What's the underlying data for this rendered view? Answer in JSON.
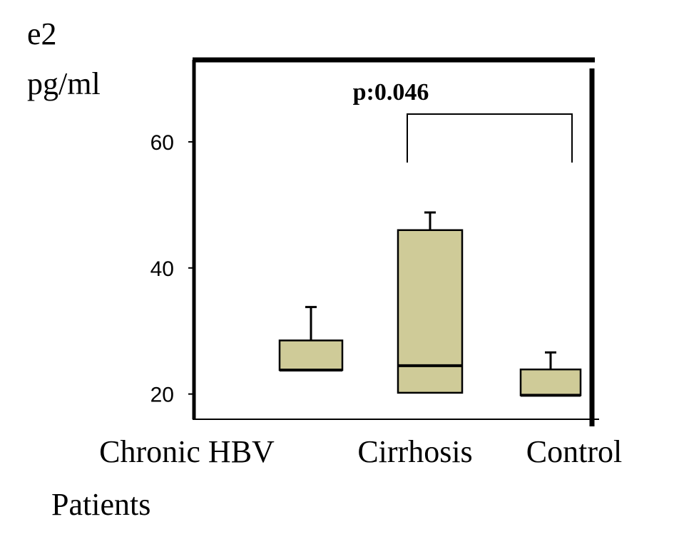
{
  "chart_data": {
    "type": "box",
    "ylabel": [
      "e2",
      "pg/ml"
    ],
    "xlabel": "Patients",
    "y_ticks": [
      20,
      40,
      60
    ],
    "ylim": [
      16,
      73
    ],
    "grid": false,
    "legend": "none",
    "box_color": "#cfcb98",
    "groups": [
      {
        "label": "Chronic HBV",
        "q1": 23.8,
        "median": 23.8,
        "q3": 28.5,
        "whisker_high": 33.8
      },
      {
        "label": "Cirrhosis",
        "q1": 20.2,
        "median": 24.5,
        "q3": 46.0,
        "whisker_high": 48.8
      },
      {
        "label": "Control",
        "q1": 19.8,
        "median": 19.8,
        "q3": 23.9,
        "whisker_high": 26.6
      }
    ],
    "annotations": [
      {
        "text": "p:0.046",
        "from_group": 1,
        "to_group": 2
      }
    ]
  }
}
